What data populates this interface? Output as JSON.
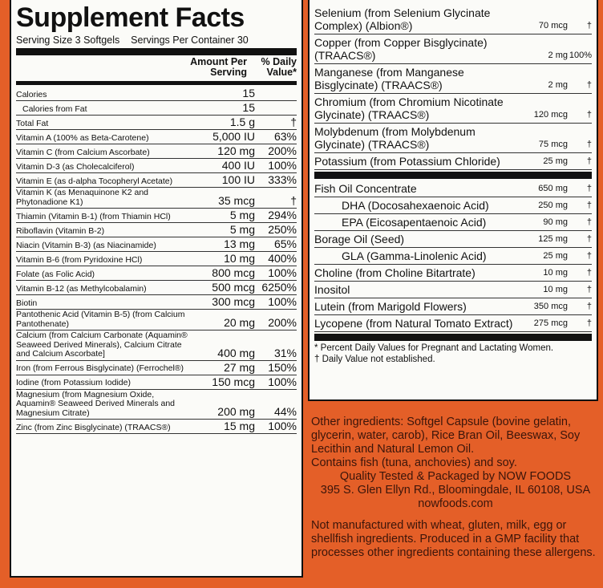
{
  "left": {
    "title": "Supplement Facts",
    "serving_size": "Serving Size 3 Softgels",
    "servings_per_container": "Servings Per Container 30",
    "header": {
      "amount": "Amount Per Serving",
      "dv": "% Daily Value*"
    },
    "rows": [
      {
        "name": "Calories",
        "amount": "15"
      },
      {
        "name": "Calories from Fat",
        "amount": "15",
        "sub": true
      },
      {
        "name": "Total Fat",
        "amount": "1.5 g",
        "dv": "†"
      },
      {
        "name": "Vitamin A (100% as Beta-Carotene)",
        "amount": "5,000 IU",
        "dv": "63%"
      },
      {
        "name": "Vitamin C (from Calcium Ascorbate)",
        "amount": "120 mg",
        "dv": "200%"
      },
      {
        "name": "Vitamin D-3 (as Cholecalciferol)",
        "amount": "400 IU",
        "dv": "100%"
      },
      {
        "name": "Vitamin E (as d-alpha Tocopheryl Acetate)",
        "amount": "100 IU",
        "dv": "333%"
      },
      {
        "name": "Vitamin K (as Menaquinone K2 and Phytonadione K1)",
        "amount": "35 mcg",
        "dv": "†"
      },
      {
        "name": "Thiamin (Vitamin B-1) (from Thiamin HCl)",
        "amount": "5 mg",
        "dv": "294%"
      },
      {
        "name": "Riboflavin (Vitamin B-2)",
        "amount": "5 mg",
        "dv": "250%"
      },
      {
        "name": "Niacin (Vitamin B-3) (as Niacinamide)",
        "amount": "13 mg",
        "dv": "65%"
      },
      {
        "name": "Vitamin B-6 (from Pyridoxine HCl)",
        "amount": "10 mg",
        "dv": "400%"
      },
      {
        "name": "Folate (as Folic Acid)",
        "amount": "800 mcg",
        "dv": "100%"
      },
      {
        "name": "Vitamin B-12 (as Methylcobalamin)",
        "amount": "500 mcg",
        "dv": "6250%"
      },
      {
        "name": "Biotin",
        "amount": "300 mcg",
        "dv": "100%"
      },
      {
        "name": "Pantothenic Acid (Vitamin B-5) (from Calcium Pantothenate)",
        "amount": "20 mg",
        "dv": "200%"
      },
      {
        "name": "Calcium (from Calcium Carbonate (Aquamin® Seaweed Derived Minerals), Calcium Citrate and Calcium Ascorbate]",
        "amount": "400 mg",
        "dv": "31%"
      },
      {
        "name": "Iron (from Ferrous Bisglycinate) (Ferrochel®)",
        "amount": "27 mg",
        "dv": "150%"
      },
      {
        "name": "Iodine (from Potassium Iodide)",
        "amount": "150 mcg",
        "dv": "100%"
      },
      {
        "name": "Magnesium (from Magnesium Oxide, Aquamin® Seaweed Derived Minerals and Magnesium Citrate)",
        "amount": "200 mg",
        "dv": "44%"
      },
      {
        "name": "Zinc (from Zinc Bisglycinate) (TRAACS®)",
        "amount": "15 mg",
        "dv": "100%"
      }
    ]
  },
  "right": {
    "sections": [
      [
        {
          "name": "Selenium (from Selenium Glycinate Complex) (Albion®)",
          "amount": "70 mcg",
          "dv": "†"
        },
        {
          "name": "Copper (from Copper Bisglycinate) (TRAACS®)",
          "amount": "2 mg",
          "dv": "100%"
        },
        {
          "name": "Manganese (from Manganese Bisglycinate) (TRAACS®)",
          "amount": "2 mg",
          "dv": "†"
        },
        {
          "name": "Chromium (from Chromium Nicotinate Glycinate) (TRAACS®)",
          "amount": "120 mcg",
          "dv": "†"
        },
        {
          "name": "Molybdenum (from Molybdenum Glycinate) (TRAACS®)",
          "amount": "75 mcg",
          "dv": "†"
        },
        {
          "name": "Potassium (from Potassium Chloride)",
          "amount": "25 mg",
          "dv": "†"
        }
      ],
      [
        {
          "name": "Fish Oil Concentrate",
          "amount": "650 mg",
          "dv": "†"
        },
        {
          "name": "DHA (Docosahexaenoic Acid)",
          "amount": "250 mg",
          "dv": "†",
          "sub": true
        },
        {
          "name": "EPA (Eicosapentaenoic Acid)",
          "amount": "90 mg",
          "dv": "†",
          "sub": true
        },
        {
          "name": "Borage Oil (Seed)",
          "amount": "125 mg",
          "dv": "†"
        },
        {
          "name": "GLA (Gamma-Linolenic Acid)",
          "amount": "25 mg",
          "dv": "†",
          "sub": true
        },
        {
          "name": "Choline (from Choline Bitartrate)",
          "amount": "10 mg",
          "dv": "†"
        },
        {
          "name": "Inositol",
          "amount": "10 mg",
          "dv": "†"
        },
        {
          "name": "Lutein (from Marigold Flowers)",
          "amount": "350 mcg",
          "dv": "†"
        },
        {
          "name": "Lycopene (from Natural Tomato Extract)",
          "amount": "275 mcg",
          "dv": "†"
        }
      ]
    ],
    "footnotes": [
      "* Percent Daily Values for Pregnant and Lactating Women.",
      "† Daily Value not established."
    ]
  },
  "other": {
    "ingredients": "Other ingredients: Softgel Capsule (bovine gelatin, glycerin, water, carob), Rice Bran Oil, Beeswax, Soy Lecithin and Natural Lemon Oil.",
    "allergen": "Contains fish (tuna, anchovies) and soy.",
    "maker": [
      "Quality Tested & Packaged by NOW FOODS",
      "395 S. Glen Ellyn Rd., Bloomingdale, IL 60108, USA",
      "nowfoods.com"
    ],
    "notice": "Not manufactured with wheat, gluten, milk, egg or shellfish ingredients. Produced in a GMP facility that processes other ingredients containing these allergens."
  }
}
